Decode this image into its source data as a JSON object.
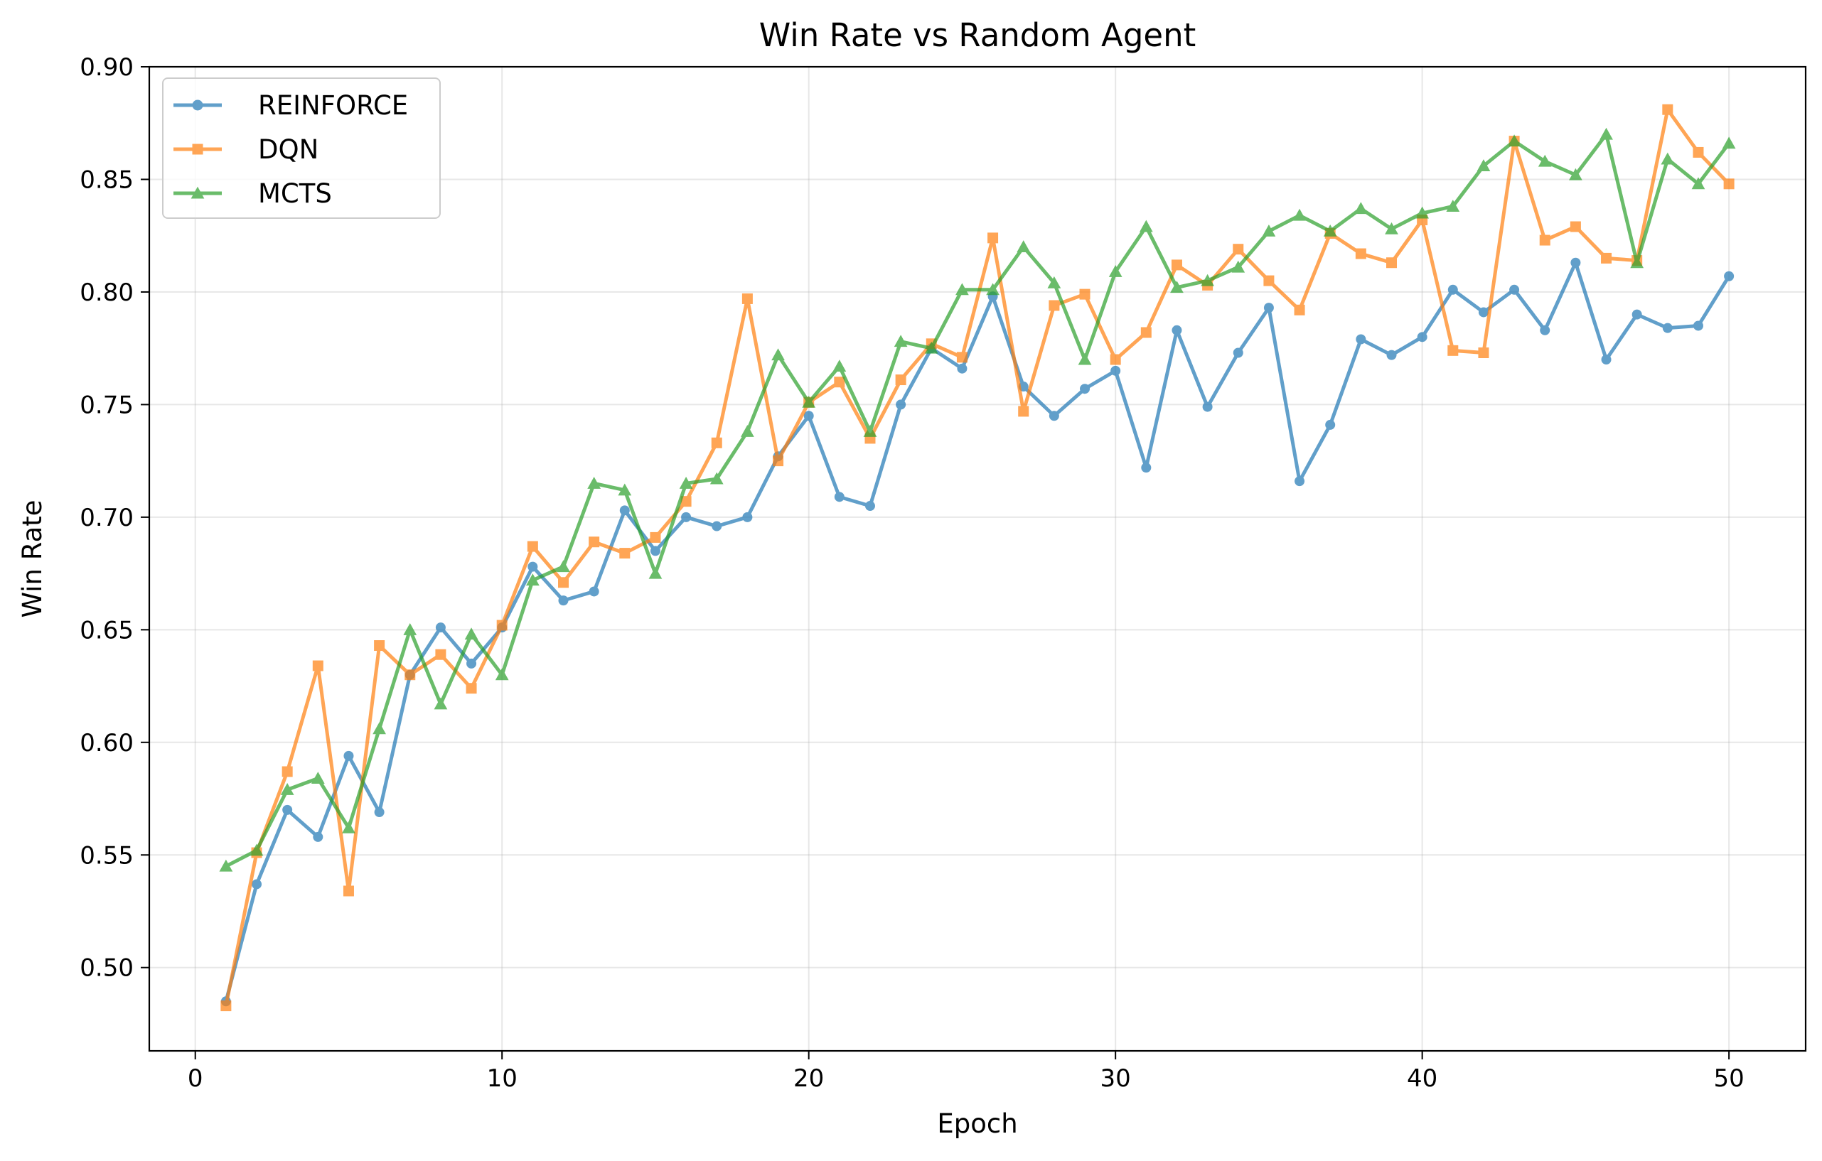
{
  "chart_data": {
    "type": "line",
    "title": "Win Rate vs Random Agent",
    "xlabel": "Epoch",
    "ylabel": "Win Rate",
    "xlim": [
      -1.5,
      52.5
    ],
    "ylim": [
      0.463,
      0.9
    ],
    "xticks": [
      0,
      10,
      20,
      30,
      40,
      50
    ],
    "xtick_labels": [
      "0",
      "10",
      "20",
      "30",
      "40",
      "50"
    ],
    "yticks": [
      0.5,
      0.55,
      0.6,
      0.65,
      0.7,
      0.75,
      0.8,
      0.85,
      0.9
    ],
    "ytick_labels": [
      "0.50",
      "0.55",
      "0.60",
      "0.65",
      "0.70",
      "0.75",
      "0.80",
      "0.85",
      "0.90"
    ],
    "grid": true,
    "legend_position": "top-left",
    "x": [
      1,
      2,
      3,
      4,
      5,
      6,
      7,
      8,
      9,
      10,
      11,
      12,
      13,
      14,
      15,
      16,
      17,
      18,
      19,
      20,
      21,
      22,
      23,
      24,
      25,
      26,
      27,
      28,
      29,
      30,
      31,
      32,
      33,
      34,
      35,
      36,
      37,
      38,
      39,
      40,
      41,
      42,
      43,
      44,
      45,
      46,
      47,
      48,
      49,
      50
    ],
    "series": [
      {
        "name": "REINFORCE",
        "color": "#1f77b4",
        "marker": "circle",
        "values": [
          0.485,
          0.537,
          0.57,
          0.558,
          0.594,
          0.569,
          0.63,
          0.651,
          0.635,
          0.651,
          0.678,
          0.663,
          0.667,
          0.703,
          0.685,
          0.7,
          0.696,
          0.7,
          0.727,
          0.745,
          0.709,
          0.705,
          0.75,
          0.775,
          0.766,
          0.798,
          0.758,
          0.745,
          0.757,
          0.765,
          0.722,
          0.783,
          0.749,
          0.773,
          0.793,
          0.716,
          0.741,
          0.779,
          0.772,
          0.78,
          0.801,
          0.791,
          0.801,
          0.783,
          0.813,
          0.77,
          0.79,
          0.784,
          0.785,
          0.807
        ]
      },
      {
        "name": "DQN",
        "color": "#ff7f0e",
        "marker": "square",
        "values": [
          0.483,
          0.551,
          0.587,
          0.634,
          0.534,
          0.643,
          0.63,
          0.639,
          0.624,
          0.652,
          0.687,
          0.671,
          0.689,
          0.684,
          0.691,
          0.707,
          0.733,
          0.797,
          0.725,
          0.751,
          0.76,
          0.735,
          0.761,
          0.777,
          0.771,
          0.824,
          0.747,
          0.794,
          0.799,
          0.77,
          0.782,
          0.812,
          0.803,
          0.819,
          0.805,
          0.792,
          0.826,
          0.817,
          0.813,
          0.832,
          0.774,
          0.773,
          0.867,
          0.823,
          0.829,
          0.815,
          0.814,
          0.881,
          0.862,
          0.848
        ]
      },
      {
        "name": "MCTS",
        "color": "#2ca02c",
        "marker": "triangle",
        "values": [
          0.545,
          0.552,
          0.579,
          0.584,
          0.562,
          0.606,
          0.65,
          0.617,
          0.648,
          0.63,
          0.672,
          0.678,
          0.715,
          0.712,
          0.675,
          0.715,
          0.717,
          0.738,
          0.772,
          0.751,
          0.767,
          0.738,
          0.778,
          0.775,
          0.801,
          0.801,
          0.82,
          0.804,
          0.77,
          0.809,
          0.829,
          0.802,
          0.805,
          0.811,
          0.827,
          0.834,
          0.827,
          0.837,
          0.828,
          0.835,
          0.838,
          0.856,
          0.867,
          0.858,
          0.852,
          0.87,
          0.813,
          0.859,
          0.848,
          0.866
        ]
      }
    ]
  }
}
